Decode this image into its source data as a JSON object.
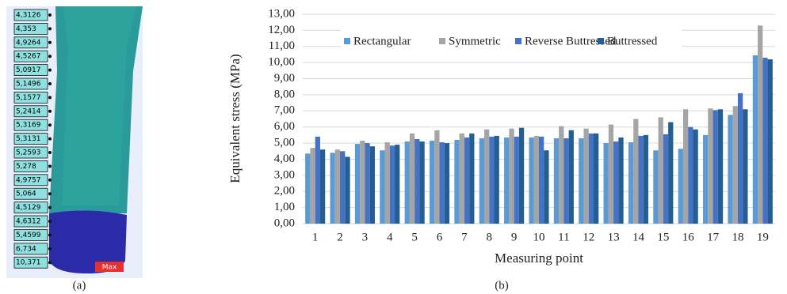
{
  "panel_a": {
    "caption": "(a)",
    "labels": [
      "4,3126",
      "4,353",
      "4,9264",
      "4,5267",
      "5,0917",
      "5,1496",
      "5,1577",
      "5,2414",
      "5,3169",
      "5,3131",
      "5,2593",
      "5,278",
      "4,9757",
      "5,064",
      "4,5129",
      "4,6312",
      "5,4599",
      "6,734",
      "10,371"
    ],
    "max_label": "Max"
  },
  "chart_data": {
    "type": "bar",
    "caption": "(b)",
    "x_label": "Measuring point",
    "y_label": "Equivalent stress (MPa)",
    "categories": [
      "1",
      "2",
      "3",
      "4",
      "5",
      "6",
      "7",
      "8",
      "9",
      "10",
      "11",
      "12",
      "13",
      "14",
      "15",
      "16",
      "17",
      "18",
      "19"
    ],
    "series": [
      {
        "name": "Rectangular",
        "color": "#5b9bd5",
        "values": [
          4.35,
          4.4,
          4.95,
          4.55,
          5.1,
          5.15,
          5.2,
          5.3,
          5.35,
          5.35,
          5.3,
          5.3,
          5.0,
          5.05,
          4.55,
          4.65,
          5.5,
          6.75,
          10.45
        ]
      },
      {
        "name": "Symmetric",
        "color": "#a5a5a5",
        "values": [
          4.7,
          4.6,
          5.15,
          5.05,
          5.6,
          5.8,
          5.6,
          5.85,
          5.9,
          5.45,
          6.05,
          5.9,
          6.15,
          6.5,
          6.6,
          7.1,
          7.15,
          7.3,
          12.3
        ]
      },
      {
        "name": "Reverse Buttressed",
        "color": "#4472c4",
        "values": [
          5.4,
          4.5,
          5.0,
          4.85,
          5.25,
          5.05,
          5.35,
          5.4,
          5.4,
          5.4,
          5.3,
          5.6,
          5.1,
          5.45,
          5.55,
          6.0,
          7.05,
          8.1,
          10.3
        ]
      },
      {
        "name": "Buttressed",
        "color": "#255e91",
        "values": [
          4.6,
          4.15,
          4.8,
          4.9,
          5.1,
          5.0,
          5.6,
          5.45,
          5.95,
          4.55,
          5.8,
          5.6,
          5.35,
          5.5,
          6.3,
          5.85,
          7.1,
          7.1,
          10.2
        ]
      }
    ],
    "ylim": [
      0,
      13
    ],
    "yticks": [
      {
        "value": 0,
        "label": "0,00"
      },
      {
        "value": 1,
        "label": "1,00"
      },
      {
        "value": 2,
        "label": "2,00"
      },
      {
        "value": 3,
        "label": "3,00"
      },
      {
        "value": 4,
        "label": "4,00"
      },
      {
        "value": 5,
        "label": "5,00"
      },
      {
        "value": 6,
        "label": "6,00"
      },
      {
        "value": 7,
        "label": "7,00"
      },
      {
        "value": 8,
        "label": "8,00"
      },
      {
        "value": 9,
        "label": "9,00"
      },
      {
        "value": 10,
        "label": "10,00"
      },
      {
        "value": 11,
        "label": "11,00"
      },
      {
        "value": 12,
        "label": "12,00"
      },
      {
        "value": 13,
        "label": "13,00"
      }
    ],
    "grid": true
  }
}
